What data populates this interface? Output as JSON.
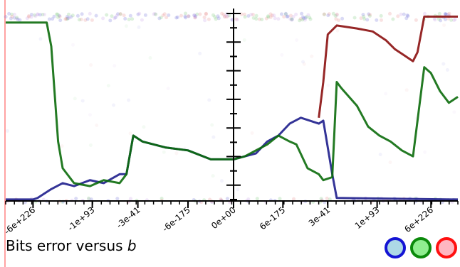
{
  "caption": {
    "prefix": "Bits error versus ",
    "variable": "b"
  },
  "legend": [
    {
      "name": "blue",
      "border": "#1414d4",
      "fill": "#add8e6"
    },
    {
      "name": "green",
      "border": "#0b8a0b",
      "fill": "#90ee90"
    },
    {
      "name": "red",
      "border": "#ff1010",
      "fill": "#ffb6c1"
    }
  ],
  "chart_data": {
    "type": "line",
    "xlabel": "",
    "ylabel": "",
    "x_ticks": [
      "-6e+226",
      "-1e+93",
      "-3e-41",
      "-6e-175",
      "0e+00",
      "6e-175",
      "3e-41",
      "1e+93",
      "6e+226"
    ],
    "ylim": [
      0,
      64
    ],
    "colors": {
      "blue": "#1e1e8c",
      "green": "#0b6b0b",
      "red": "#8b1010"
    },
    "series": [
      {
        "color": "blue",
        "x": [
          -1.0,
          -0.88,
          -0.86,
          -0.8,
          -0.75,
          -0.7,
          -0.63,
          -0.57,
          -0.5,
          -0.47,
          -0.44,
          -0.4,
          -0.3,
          -0.2,
          -0.1,
          0.0,
          0.05,
          0.1,
          0.15,
          0.2,
          0.25,
          0.3,
          0.38,
          0.4,
          0.44,
          0.46,
          1.0
        ],
        "values": [
          0.5,
          0.5,
          1,
          4,
          6,
          5,
          7,
          6,
          9,
          9,
          22,
          20,
          18,
          17,
          14,
          14,
          15,
          16,
          20,
          22,
          26,
          28,
          26,
          27,
          9,
          1,
          0.5
        ]
      },
      {
        "color": "green",
        "x": [
          -1.0,
          -0.82,
          -0.8,
          -0.77,
          -0.75,
          -0.7,
          -0.63,
          -0.57,
          -0.5,
          -0.47,
          -0.44,
          -0.4,
          -0.3,
          -0.2,
          -0.1,
          0.0,
          0.05,
          0.1,
          0.15,
          0.2,
          0.25,
          0.28,
          0.33,
          0.38,
          0.4,
          0.44,
          0.46,
          0.48,
          0.55,
          0.6,
          0.65,
          0.7,
          0.75,
          0.8,
          0.85,
          0.88,
          0.92,
          0.96,
          1.0
        ],
        "values": [
          60,
          60,
          52,
          20,
          11,
          6,
          5,
          7,
          6,
          9,
          22,
          20,
          18,
          17,
          14,
          14,
          15,
          17,
          19,
          22,
          20,
          19,
          11,
          9,
          7,
          8,
          40,
          38,
          32,
          25,
          22,
          20,
          17,
          15,
          45,
          43,
          37,
          33,
          35
        ]
      },
      {
        "color": "red",
        "x": [
          0.38,
          0.4,
          0.42,
          0.46,
          0.55,
          0.62,
          0.68,
          0.72,
          0.76,
          0.78,
          0.8,
          0.82,
          0.85,
          1.0
        ],
        "values": [
          28,
          40,
          56,
          59,
          58,
          57,
          54,
          51,
          49,
          48,
          47,
          50,
          62,
          62
        ]
      }
    ]
  }
}
